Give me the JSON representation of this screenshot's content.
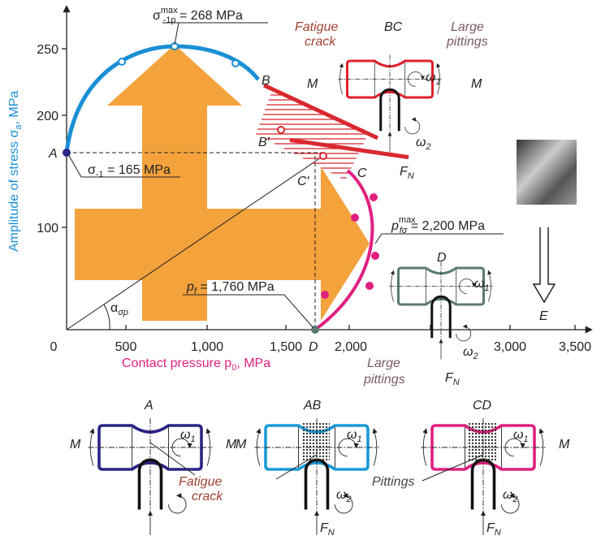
{
  "axes": {
    "y_label": {
      "main": "Amplitude of stress σ",
      "sub": "a",
      "unit": ", MPa"
    },
    "x_label": {
      "main": "Contact pressure p",
      "sub": "0",
      "unit": ", MPa"
    },
    "x_ticks": [
      "0",
      "500",
      "1,000",
      "1,500",
      "2,000",
      "3,000",
      "3,500"
    ],
    "y_ticks": [
      "250",
      "200",
      "100"
    ]
  },
  "points": {
    "A": "A",
    "B": "B",
    "B_prime": "B′",
    "C_prime": "C′",
    "C": "C",
    "D": "D",
    "E": "E"
  },
  "annotations": {
    "max_stress": {
      "symbol": "σ",
      "sup": "max",
      "sub": "-1p",
      "text": " = 268 MPa"
    },
    "fatigue_limit": {
      "symbol": "σ",
      "sub": "-1",
      "text": " = 165 MPa"
    },
    "max_pressure": {
      "symbol": "p",
      "sup": "max",
      "sub": "fσ",
      "text": " = 2,200 MPa"
    },
    "pressure_limit": {
      "symbol": "p",
      "sub": "f",
      "text": " = 1,760 MPa"
    },
    "angle": {
      "symbol": "α",
      "sub": "σp"
    }
  },
  "specimens": {
    "BC": {
      "label": "BC",
      "left_note": [
        "Fatigue",
        "crack"
      ],
      "right_note": [
        "Large",
        "pittings"
      ],
      "moment_left": "M",
      "moment_right": "M",
      "omega1": {
        "symbol": "ω",
        "sub": "1"
      },
      "omega2": {
        "symbol": "ω",
        "sub": "2"
      },
      "force": {
        "symbol": "F",
        "sub": "N"
      }
    },
    "D": {
      "label": "D",
      "note": [
        "Large",
        "pittings"
      ],
      "omega1": {
        "symbol": "ω",
        "sub": "1"
      },
      "omega2": {
        "symbol": "ω",
        "sub": "2"
      },
      "force": {
        "symbol": "F",
        "sub": "N"
      }
    },
    "A": {
      "label": "A",
      "moment_left": "M",
      "moment_right": "M",
      "omega1": {
        "symbol": "ω",
        "sub": "1"
      }
    },
    "AB": {
      "label": "AB",
      "moment_left": "M",
      "omega1": {
        "symbol": "ω",
        "sub": "1"
      },
      "omega2": {
        "symbol": "ω",
        "sub": "2"
      },
      "force": {
        "symbol": "F",
        "sub": "N"
      }
    },
    "CD": {
      "label": "CD",
      "moment_right": "M",
      "omega1": {
        "symbol": "ω",
        "sub": "1"
      },
      "omega2": {
        "symbol": "ω",
        "sub": "2"
      },
      "force": {
        "symbol": "F",
        "sub": "N"
      }
    },
    "bottom_notes": {
      "fatigue": [
        "Fatigue",
        "crack"
      ],
      "pittings": "Pittings"
    }
  }
}
